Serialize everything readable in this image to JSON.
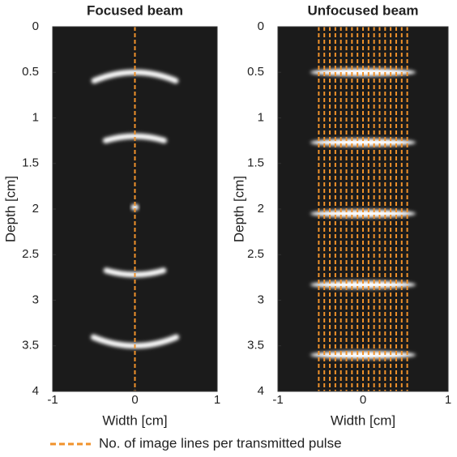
{
  "chart_data": [
    {
      "type": "image",
      "title": "Focused beam",
      "xlabel": "Width [cm]",
      "ylabel": "Depth [cm]",
      "xlim": [
        -1,
        1
      ],
      "ylim": [
        4,
        0
      ],
      "xticks": [
        -1,
        0,
        1
      ],
      "yticks": [
        0,
        0.5,
        1,
        1.5,
        2,
        2.5,
        3,
        3.5,
        4
      ],
      "line_x": [
        0
      ],
      "line_color": "#f0922b",
      "reflector_depths": [
        0.5,
        1.2,
        1.98,
        2.72,
        3.5
      ]
    },
    {
      "type": "image",
      "title": "Unfocused beam",
      "xlabel": "Width [cm]",
      "ylabel": "Depth [cm]",
      "xlim": [
        -1,
        1
      ],
      "ylim": [
        4,
        0
      ],
      "xticks": [
        -1,
        0,
        1
      ],
      "yticks": [
        0,
        0.5,
        1,
        1.5,
        2,
        2.5,
        3,
        3.5,
        4
      ],
      "line_x": [
        -0.52,
        -0.455,
        -0.39,
        -0.325,
        -0.26,
        -0.195,
        -0.13,
        -0.065,
        0,
        0.065,
        0.13,
        0.195,
        0.26,
        0.325,
        0.39,
        0.455,
        0.52
      ],
      "line_color": "#f0922b",
      "reflector_depths": [
        0.5,
        1.27,
        2.05,
        2.83,
        3.6
      ]
    }
  ],
  "legend_label": "No. of image lines per transmitted pulse"
}
